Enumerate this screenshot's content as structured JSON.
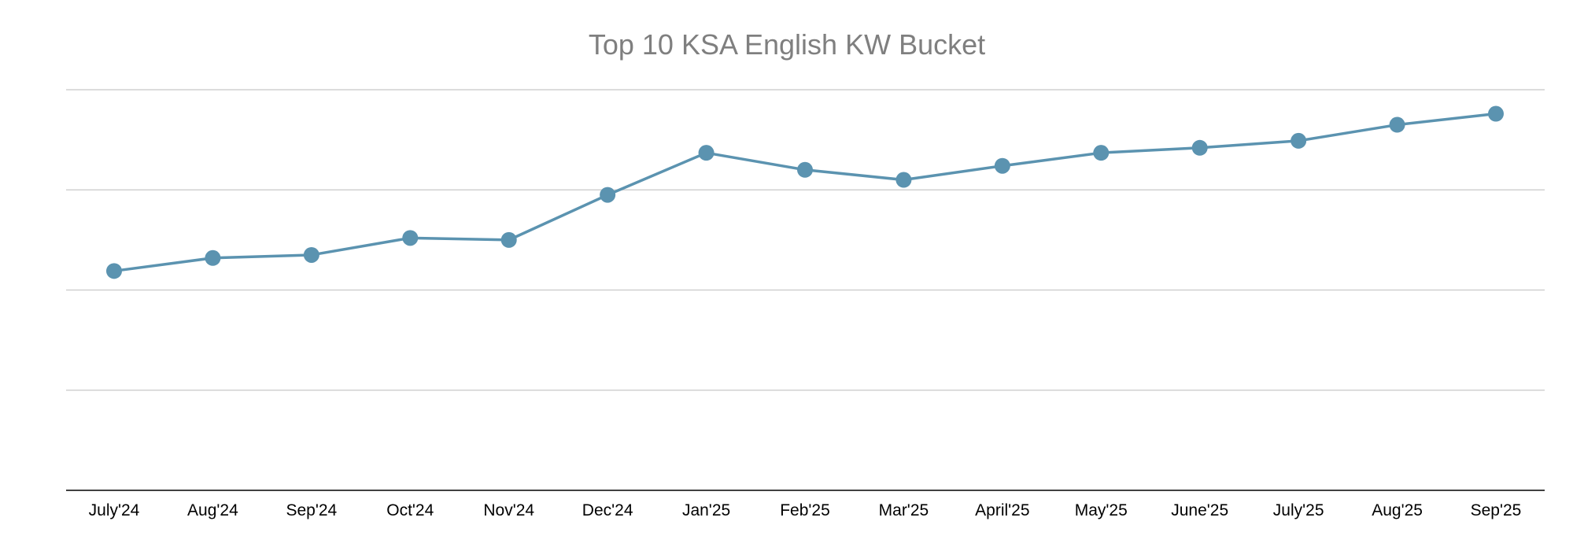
{
  "chart_data": {
    "type": "line",
    "title": "Top 10 KSA English KW Bucket",
    "xlabel": "",
    "ylabel": "",
    "categories": [
      "July'24",
      "Aug'24",
      "Sep'24",
      "Oct'24",
      "Nov'24",
      "Dec'24",
      "Jan'25",
      "Feb'25",
      "Mar'25",
      "April'25",
      "May'25",
      "June'25",
      "July'25",
      "Aug'25",
      "Sep'25"
    ],
    "series": [
      {
        "values": [
          2.19,
          2.32,
          2.35,
          2.52,
          2.5,
          2.95,
          3.37,
          3.2,
          3.1,
          3.24,
          3.37,
          3.42,
          3.49,
          3.65,
          3.76
        ]
      }
    ],
    "ylim": [
      0,
      4
    ],
    "yticks": [
      0,
      1,
      2,
      3,
      4
    ],
    "ytick_labels_shown": false,
    "grid": true,
    "legend": "none",
    "colors": {
      "series": "#5b93b0",
      "grid": "#d0d0d0",
      "axis": "#000000",
      "title": "#7f7f7f"
    }
  }
}
